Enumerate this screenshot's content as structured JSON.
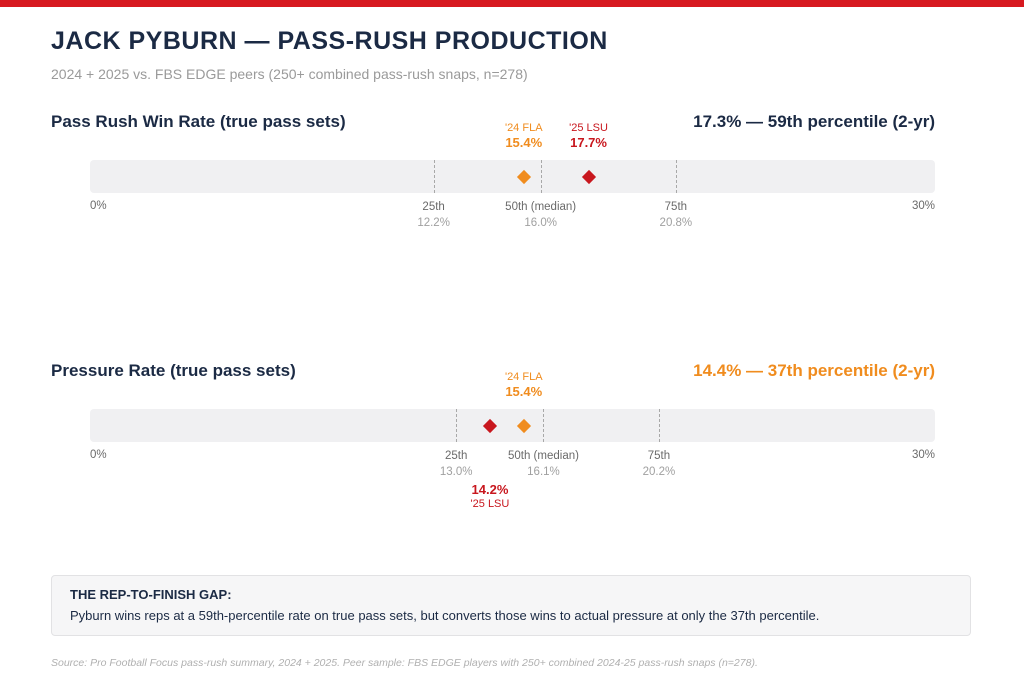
{
  "header": {
    "title": "JACK PYBURN — PASS-RUSH PRODUCTION",
    "subtitle": "2024 + 2025 vs. FBS EDGE peers (250+ combined pass-rush snaps, n=278)"
  },
  "colors": {
    "accent_bar": "#d71920",
    "fla": "#f08c1e",
    "lsu": "#c8171e",
    "navy": "#1b2a44",
    "track": "#f0f0f2"
  },
  "chart_data": [
    {
      "type": "scatter",
      "title": "Pass Rush Win Rate (true pass sets)",
      "summary": "17.3% — 59th percentile (2-yr)",
      "summary_color": "navy",
      "xlim": [
        0,
        30
      ],
      "axis_min_label": "0%",
      "axis_max_label": "30%",
      "percentiles": [
        {
          "name": "25th",
          "value": 12.2,
          "label": "12.2%"
        },
        {
          "name": "50th (median)",
          "value": 16.0,
          "label": "16.0%"
        },
        {
          "name": "75th",
          "value": 20.8,
          "label": "20.8%"
        }
      ],
      "points": [
        {
          "label": "'24 FLA",
          "value": 15.4,
          "value_label": "15.4%",
          "color": "fla",
          "callout": "above"
        },
        {
          "label": "'25 LSU",
          "value": 17.7,
          "value_label": "17.7%",
          "color": "lsu",
          "callout": "above"
        }
      ]
    },
    {
      "type": "scatter",
      "title": "Pressure Rate (true pass sets)",
      "summary": "14.4% — 37th percentile (2-yr)",
      "summary_color": "fla",
      "xlim": [
        0,
        30
      ],
      "axis_min_label": "0%",
      "axis_max_label": "30%",
      "percentiles": [
        {
          "name": "25th",
          "value": 13.0,
          "label": "13.0%"
        },
        {
          "name": "50th (median)",
          "value": 16.1,
          "label": "16.1%"
        },
        {
          "name": "75th",
          "value": 20.2,
          "label": "20.2%"
        }
      ],
      "points": [
        {
          "label": "'24 FLA",
          "value": 15.4,
          "value_label": "15.4%",
          "color": "fla",
          "callout": "above"
        },
        {
          "label": "'25 LSU",
          "value": 14.2,
          "value_label": "14.2%",
          "color": "lsu",
          "callout": "below"
        }
      ]
    }
  ],
  "note": {
    "title": "THE REP-TO-FINISH GAP:",
    "body": "Pyburn wins reps at a 59th-percentile rate on true pass sets, but converts those wins to actual pressure at only the 37th percentile."
  },
  "source": "Source: Pro Football Focus pass-rush summary, 2024 + 2025. Peer sample: FBS EDGE players with 250+ combined 2024-25 pass-rush snaps (n=278)."
}
